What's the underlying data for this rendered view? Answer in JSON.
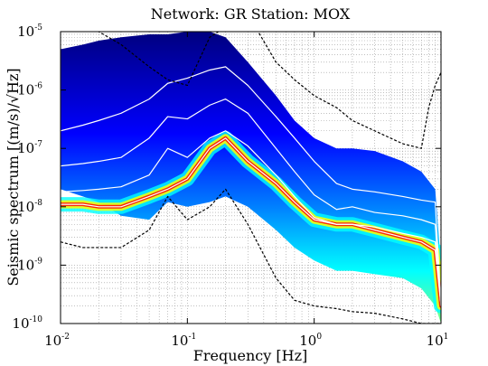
{
  "chart_data": {
    "type": "heatmap",
    "title": "Network: GR Station: MOX",
    "xlabel": "Frequency [Hz]",
    "ylabel": "Seismic spectrum [(m/s)/√Hz]",
    "xscale": "log",
    "yscale": "log",
    "xlim": [
      0.01,
      10
    ],
    "ylim": [
      1e-10,
      1e-05
    ],
    "grid": true,
    "x_ticks": [
      {
        "base": "10",
        "exp": "-2",
        "value": 0.01
      },
      {
        "base": "10",
        "exp": "-1",
        "value": 0.1
      },
      {
        "base": "10",
        "exp": "0",
        "value": 1
      },
      {
        "base": "10",
        "exp": "1",
        "value": 10
      }
    ],
    "y_ticks": [
      {
        "base": "10",
        "exp": "-10",
        "value": 1e-10
      },
      {
        "base": "10",
        "exp": "-9",
        "value": 1e-09
      },
      {
        "base": "10",
        "exp": "-8",
        "value": 1e-08
      },
      {
        "base": "10",
        "exp": "-7",
        "value": 1e-07
      },
      {
        "base": "10",
        "exp": "-6",
        "value": 1e-06
      },
      {
        "base": "10",
        "exp": "-5",
        "value": 1e-05
      }
    ],
    "density_colormap": [
      "#00007f",
      "#0000ff",
      "#0080ff",
      "#00ffff",
      "#80ff80",
      "#ffff00",
      "#ff8000",
      "#ff0000",
      "#7f0000"
    ],
    "density_band": {
      "x": [
        0.01,
        0.015,
        0.02,
        0.03,
        0.05,
        0.07,
        0.1,
        0.15,
        0.2,
        0.3,
        0.5,
        0.7,
        1.0,
        1.5,
        2.0,
        3.0,
        5.0,
        7.0,
        9.0,
        10.0
      ],
      "upper": [
        5e-06,
        6e-06,
        7e-06,
        8e-06,
        9e-06,
        9e-06,
        1e-05,
        1e-05,
        8e-06,
        3e-06,
        8e-07,
        3e-07,
        1.5e-07,
        1e-07,
        1e-07,
        9e-08,
        6e-08,
        4e-08,
        2e-08,
        1e-09
      ],
      "lower": [
        2e-08,
        1.5e-08,
        1.2e-08,
        7e-09,
        6e-09,
        1.2e-08,
        1e-08,
        1.2e-08,
        1.5e-08,
        1e-08,
        4e-09,
        2e-09,
        1.2e-09,
        8e-10,
        8e-10,
        7e-10,
        6e-10,
        4e-10,
        2e-10,
        1e-10
      ],
      "mode": [
        1.1e-08,
        1.1e-08,
        1e-08,
        1e-08,
        1.5e-08,
        2e-08,
        3e-08,
        1e-07,
        1.5e-07,
        6e-08,
        2.5e-08,
        1.2e-08,
        6e-09,
        5e-09,
        5e-09,
        4e-09,
        3e-09,
        2.5e-09,
        1.8e-09,
        2e-10
      ]
    },
    "series": [
      {
        "x": [
          0.01,
          0.015,
          0.02,
          0.03,
          0.05,
          0.07,
          0.1,
          0.15,
          0.2,
          0.3,
          0.5,
          0.7,
          1.0,
          1.5,
          2.0,
          3.0,
          5.0,
          7.0,
          9.0,
          10.0
        ],
        "values": [
          2e-07,
          2.5e-07,
          3e-07,
          4e-07,
          7e-07,
          1.3e-06,
          1.6e-06,
          2.2e-06,
          2.5e-06,
          1.2e-06,
          3.5e-07,
          1.5e-07,
          6e-08,
          2.5e-08,
          2e-08,
          1.8e-08,
          1.5e-08,
          1.3e-08,
          1.2e-08,
          2e-10
        ],
        "color": "#ffffff",
        "style": "solid"
      },
      {
        "x": [
          0.01,
          0.015,
          0.02,
          0.03,
          0.05,
          0.07,
          0.1,
          0.15,
          0.2,
          0.3,
          0.5,
          0.7,
          1.0,
          1.5,
          2.0,
          3.0,
          5.0,
          7.0,
          9.0,
          10.0
        ],
        "values": [
          5e-08,
          5.5e-08,
          6e-08,
          7e-08,
          1.5e-07,
          3.5e-07,
          3.2e-07,
          5.5e-07,
          7e-07,
          4e-07,
          1e-07,
          4e-08,
          1.6e-08,
          9e-09,
          1e-08,
          8e-09,
          7e-09,
          6e-09,
          5e-09,
          2e-10
        ],
        "color": "#ffffff",
        "style": "solid"
      },
      {
        "x": [
          0.01,
          0.015,
          0.02,
          0.03,
          0.05,
          0.07,
          0.1,
          0.15,
          0.2,
          0.3,
          0.5,
          0.7,
          1.0,
          1.5,
          2.0,
          3.0,
          5.0,
          7.0,
          9.0,
          10.0
        ],
        "values": [
          1.8e-08,
          1.9e-08,
          2e-08,
          2.2e-08,
          3.5e-08,
          1e-07,
          7e-08,
          1.5e-07,
          2e-07,
          1.1e-07,
          3.5e-08,
          1.5e-08,
          6.5e-09,
          5e-09,
          5e-09,
          4.5e-09,
          3.5e-09,
          3e-09,
          2.5e-09,
          2e-10
        ],
        "color": "#ffffff",
        "style": "solid"
      },
      {
        "x": [
          0.01,
          0.015,
          0.02,
          0.03,
          0.05,
          0.07,
          0.1,
          0.15,
          0.2,
          0.3,
          0.5,
          0.7,
          1.0,
          1.5,
          2.0,
          3.0,
          5.0,
          7.0,
          9.0,
          10.0
        ],
        "values": [
          1.1e-08,
          1.1e-08,
          1e-08,
          1e-08,
          1.5e-08,
          2e-08,
          3e-08,
          1e-07,
          1.5e-07,
          6e-08,
          2.5e-08,
          1.2e-08,
          6e-09,
          5e-09,
          5e-09,
          4e-09,
          3e-09,
          2.5e-09,
          1.8e-09,
          2e-10
        ],
        "color": "#ffffff",
        "style": "solid"
      },
      {
        "x": [
          0.01,
          0.02,
          0.03,
          0.05,
          0.07,
          0.1,
          0.15,
          0.2,
          0.3,
          0.5,
          0.7,
          1.0,
          1.5,
          2.0,
          3.0,
          5.0,
          7.0,
          8.0,
          9.0,
          10.0
        ],
        "values": [
          2e-05,
          1e-05,
          6e-06,
          2.5e-06,
          1.5e-06,
          1.2e-06,
          8e-06,
          1.2e-05,
          2e-05,
          3e-06,
          1.5e-06,
          8e-07,
          5e-07,
          3e-07,
          2e-07,
          1.2e-07,
          1e-07,
          5e-07,
          1.2e-06,
          2e-06
        ],
        "color": "#000000",
        "style": "dashed"
      },
      {
        "x": [
          0.01,
          0.015,
          0.02,
          0.03,
          0.05,
          0.07,
          0.1,
          0.15,
          0.2,
          0.3,
          0.5,
          0.7,
          1.0,
          1.5,
          2.0,
          3.0,
          5.0,
          7.0,
          9.0,
          10.0
        ],
        "values": [
          2.5e-09,
          2e-09,
          2e-09,
          2e-09,
          4e-09,
          1.5e-08,
          6e-09,
          1e-08,
          2e-08,
          5e-09,
          6e-10,
          2.5e-10,
          2e-10,
          1.8e-10,
          1.6e-10,
          1.5e-10,
          1.2e-10,
          1e-10,
          1e-10,
          1e-10
        ],
        "color": "#000000",
        "style": "dashed"
      }
    ]
  }
}
